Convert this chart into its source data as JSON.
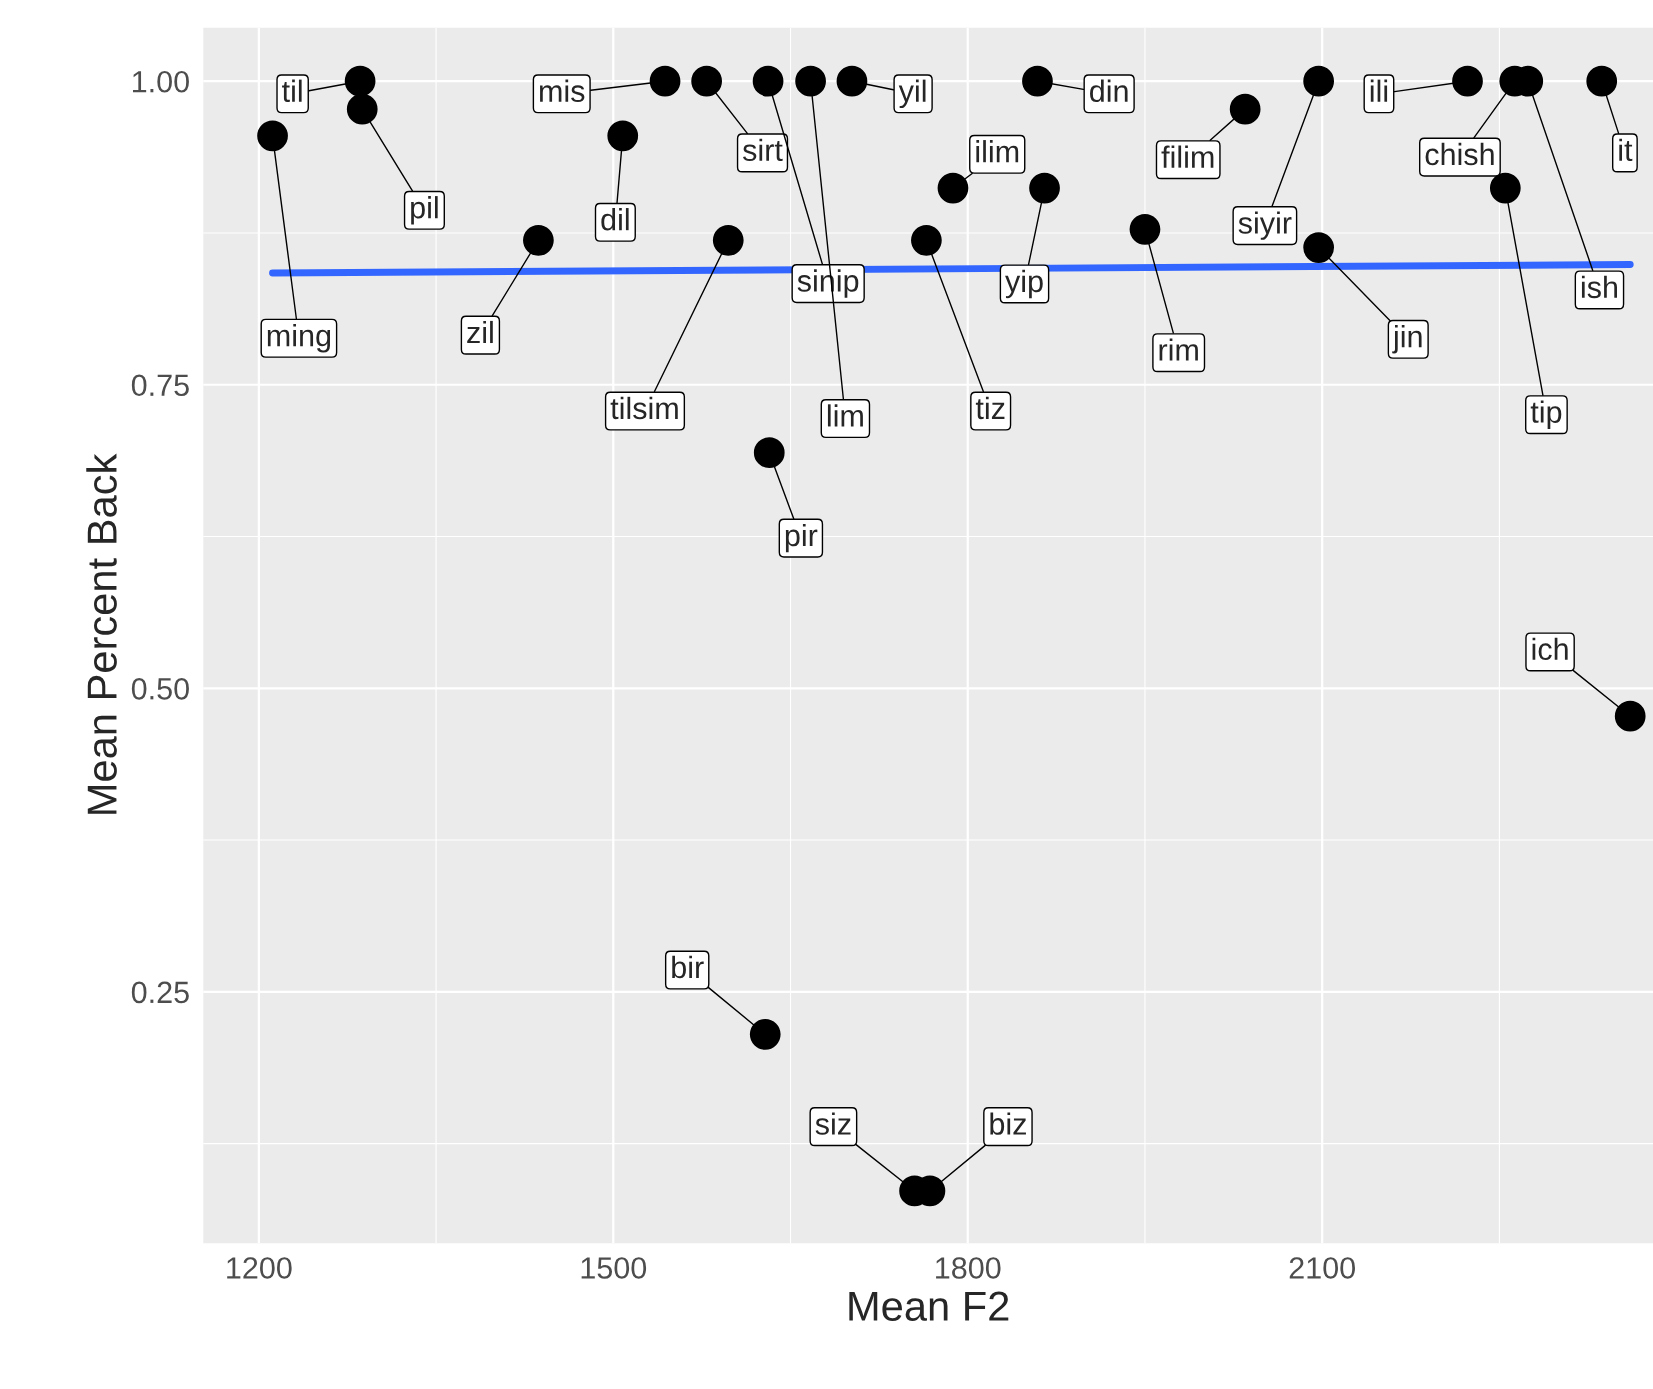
{
  "chart_data": {
    "type": "scatter",
    "xlabel": "Mean F2",
    "ylabel": "Mean Percent Back",
    "xlim": [
      1153,
      2380
    ],
    "ylim": [
      0.043,
      1.044
    ],
    "xticks": [
      1200,
      1500,
      1800,
      2100
    ],
    "yticks": [
      {
        "value": 0.25,
        "label": "0.25"
      },
      {
        "value": 0.5,
        "label": "0.50"
      },
      {
        "value": 0.75,
        "label": "0.75"
      },
      {
        "value": 1.0,
        "label": "1.00"
      }
    ],
    "grid": true,
    "marker": "circle",
    "series": [
      {
        "color": "#000000",
        "x": [
          1211.6,
          1285.7,
          1287.5,
          1436.6,
          1508,
          1543.8,
          1579,
          1631,
          1667,
          1702,
          1597.3,
          1632,
          1628.6,
          1755,
          1768,
          1765,
          1787.5,
          1865,
          1859,
          1950,
          2034.8,
          2097,
          2097,
          2223,
          2263,
          2274,
          2255,
          2336.6,
          2360.7
        ],
        "values": [
          0.955,
          1.0,
          0.977,
          0.869,
          0.955,
          1.0,
          1.0,
          1.0,
          1.0,
          1.0,
          0.869,
          0.694,
          0.215,
          0.086,
          0.086,
          0.869,
          0.912,
          0.912,
          1.0,
          0.878,
          0.977,
          1.0,
          0.863,
          1.0,
          1.0,
          1.0,
          0.912,
          1.0,
          0.477
        ]
      },
      {
        "type": "line",
        "color": "#3366ff",
        "line_style": "solid",
        "marker": "none",
        "x": [
          1211.6,
          2360.7
        ],
        "values": [
          0.842,
          0.849
        ]
      }
    ],
    "annotations": [
      {
        "text": "ming",
        "x": 1211.6,
        "y": 0.955
      },
      {
        "text": "til",
        "x": 1285.7,
        "y": 1.0
      },
      {
        "text": "pil",
        "x": 1287.5,
        "y": 0.977
      },
      {
        "text": "zil",
        "x": 1436.6,
        "y": 0.869
      },
      {
        "text": "dil",
        "x": 1508,
        "y": 0.955
      },
      {
        "text": "mis",
        "x": 1543.8,
        "y": 1.0
      },
      {
        "text": "sirt",
        "x": 1579,
        "y": 1.0
      },
      {
        "text": "sinip",
        "x": 1631,
        "y": 1.0
      },
      {
        "text": "lim",
        "x": 1667,
        "y": 1.0
      },
      {
        "text": "yil",
        "x": 1702,
        "y": 1.0
      },
      {
        "text": "tilsim",
        "x": 1597.3,
        "y": 0.869
      },
      {
        "text": "pir",
        "x": 1632,
        "y": 0.694
      },
      {
        "text": "bir",
        "x": 1628.6,
        "y": 0.215
      },
      {
        "text": "siz",
        "x": 1755,
        "y": 0.086
      },
      {
        "text": "biz",
        "x": 1768,
        "y": 0.086
      },
      {
        "text": "tiz",
        "x": 1765,
        "y": 0.869
      },
      {
        "text": "ilim",
        "x": 1787.5,
        "y": 0.912
      },
      {
        "text": "yip",
        "x": 1865,
        "y": 0.912
      },
      {
        "text": "din",
        "x": 1859,
        "y": 1.0
      },
      {
        "text": "rim",
        "x": 1950,
        "y": 0.878
      },
      {
        "text": "filim",
        "x": 2034.8,
        "y": 0.977
      },
      {
        "text": "siyir",
        "x": 2097,
        "y": 1.0
      },
      {
        "text": "jin",
        "x": 2097,
        "y": 0.863
      },
      {
        "text": "ili",
        "x": 2223,
        "y": 1.0
      },
      {
        "text": "chish",
        "x": 2263,
        "y": 1.0
      },
      {
        "text": "ish",
        "x": 2274,
        "y": 1.0
      },
      {
        "text": "tip",
        "x": 2255,
        "y": 0.912
      },
      {
        "text": "it",
        "x": 2336.6,
        "y": 1.0
      },
      {
        "text": "ich",
        "x": 2360.7,
        "y": 0.477
      }
    ]
  }
}
